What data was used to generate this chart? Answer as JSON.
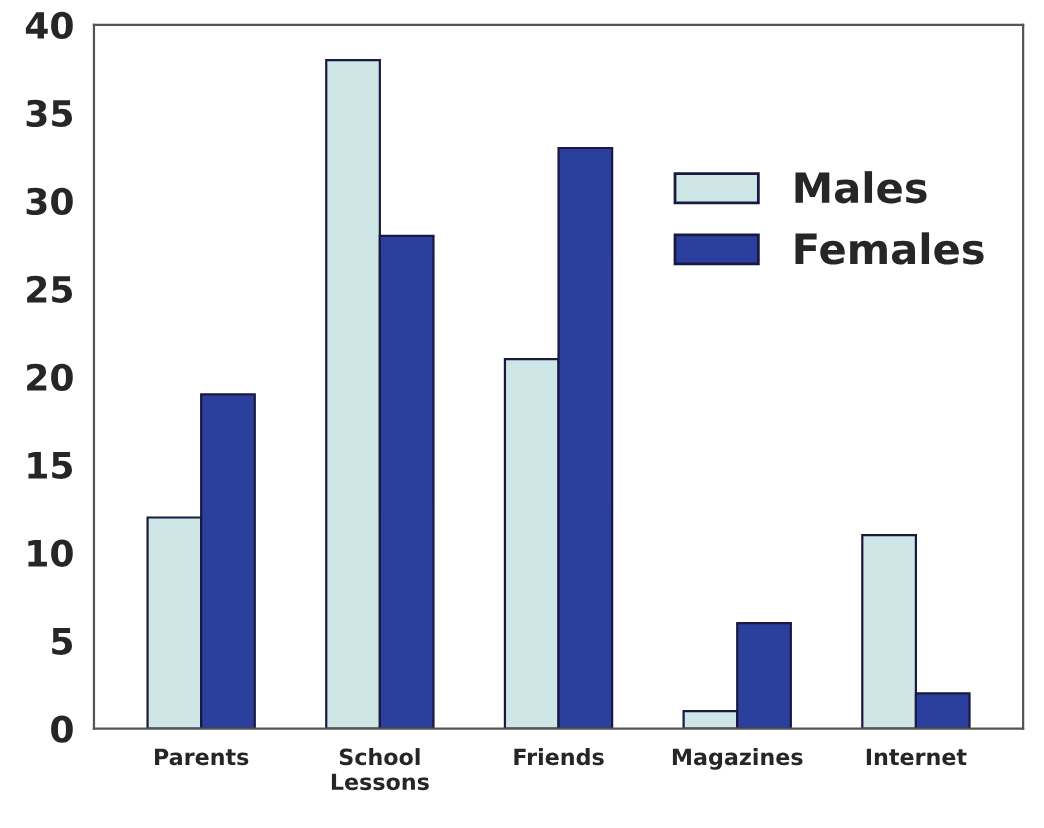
{
  "chart_data": {
    "type": "bar",
    "categories": [
      "Parents",
      "School\nLessons",
      "Friends",
      "Magazines",
      "Internet"
    ],
    "series": [
      {
        "name": "Males",
        "color": "#cfe6e6",
        "values": [
          12,
          38,
          21,
          1,
          11
        ]
      },
      {
        "name": "Females",
        "color": "#2b3f9e",
        "values": [
          19,
          28,
          33,
          6,
          2
        ]
      }
    ],
    "ylim": [
      0,
      40
    ],
    "yticks": [
      0,
      5,
      10,
      15,
      20,
      25,
      30,
      35,
      40
    ],
    "grid": false,
    "legend": "right"
  }
}
